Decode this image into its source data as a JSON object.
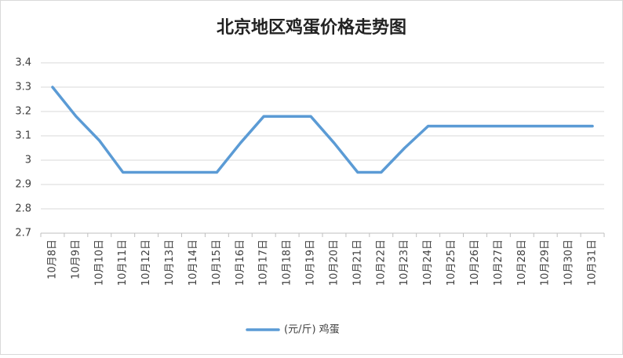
{
  "chart_data": {
    "type": "line",
    "title": "北京地区鸡蛋价格走势图",
    "categories": [
      "10月8日",
      "10月9日",
      "10月10日",
      "10月11日",
      "10月12日",
      "10月13日",
      "10月14日",
      "10月15日",
      "10月16日",
      "10月17日",
      "10月18日",
      "10月19日",
      "10月20日",
      "10月21日",
      "10月22日",
      "10月23日",
      "10月24日",
      "10月25日",
      "10月26日",
      "10月27日",
      "10月28日",
      "10月29日",
      "10月30日",
      "10月31日"
    ],
    "series": [
      {
        "name": "(元/斤) 鸡蛋",
        "color": "#5b9bd5",
        "values": [
          3.3,
          3.18,
          3.08,
          2.95,
          2.95,
          2.95,
          2.95,
          2.95,
          3.07,
          3.18,
          3.18,
          3.18,
          3.07,
          2.95,
          2.95,
          3.05,
          3.14,
          3.14,
          3.14,
          3.14,
          3.14,
          3.14,
          3.14,
          3.14
        ]
      }
    ],
    "ylim": [
      2.7,
      3.4
    ],
    "yticks": [
      2.7,
      2.8,
      2.9,
      3,
      3.1,
      3.2,
      3.3,
      3.4
    ],
    "grid": true,
    "legend": "bottom"
  }
}
